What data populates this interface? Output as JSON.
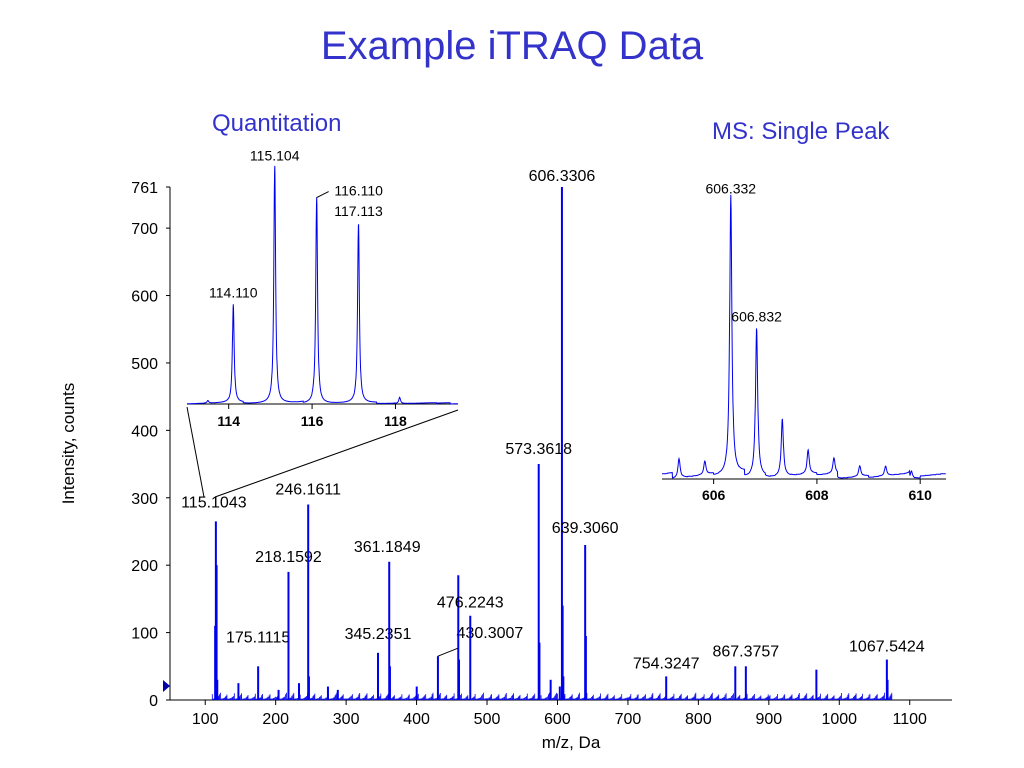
{
  "title": "Example iTRAQ Data",
  "inset_labels": {
    "left": "Quantitation",
    "right": "MS: Single Peak"
  },
  "colors": {
    "accent": "#3333cc",
    "spectrum": "#0000ee",
    "axis": "#000000"
  },
  "chart_data": [
    {
      "type": "line",
      "role": "main spectrum",
      "xlabel": "m/z, Da",
      "ylabel": "Intensity, counts",
      "xlim": [
        50,
        1160
      ],
      "ylim": [
        0,
        761
      ],
      "x_ticks": [
        100,
        200,
        300,
        400,
        500,
        600,
        700,
        800,
        900,
        1000,
        1100
      ],
      "y_ticks": [
        0,
        100,
        200,
        300,
        400,
        500,
        600,
        700,
        761
      ],
      "peaks": [
        {
          "mz": 114.1,
          "i": 110
        },
        {
          "mz": 115.1043,
          "i": 265,
          "label": "115.1043"
        },
        {
          "mz": 116.11,
          "i": 200
        },
        {
          "mz": 117.11,
          "i": 30
        },
        {
          "mz": 147.1,
          "i": 25
        },
        {
          "mz": 175.1115,
          "i": 50,
          "label": "175.1115"
        },
        {
          "mz": 204.1,
          "i": 15
        },
        {
          "mz": 218.1592,
          "i": 190,
          "label": "218.1592"
        },
        {
          "mz": 233.1,
          "i": 25
        },
        {
          "mz": 246.1611,
          "i": 290,
          "label": "246.1611"
        },
        {
          "mz": 247.2,
          "i": 35
        },
        {
          "mz": 274.2,
          "i": 20
        },
        {
          "mz": 288.2,
          "i": 15
        },
        {
          "mz": 345.2351,
          "i": 70,
          "label": "345.2351"
        },
        {
          "mz": 361.1849,
          "i": 205,
          "label": "361.1849"
        },
        {
          "mz": 362.2,
          "i": 50
        },
        {
          "mz": 400.2,
          "i": 20
        },
        {
          "mz": 430.3007,
          "i": 65,
          "label": "430.3007"
        },
        {
          "mz": 459.2,
          "i": 185
        },
        {
          "mz": 460.2,
          "i": 60
        },
        {
          "mz": 476.2243,
          "i": 125,
          "label": "476.2243"
        },
        {
          "mz": 573.3618,
          "i": 350,
          "label": "573.3618"
        },
        {
          "mz": 574.4,
          "i": 85
        },
        {
          "mz": 590.3,
          "i": 30
        },
        {
          "mz": 603.3,
          "i": 20
        },
        {
          "mz": 606.3306,
          "i": 761,
          "label": "606.3306"
        },
        {
          "mz": 607.3,
          "i": 140
        },
        {
          "mz": 608.3,
          "i": 35
        },
        {
          "mz": 639.306,
          "i": 230,
          "label": "639.3060"
        },
        {
          "mz": 640.3,
          "i": 95
        },
        {
          "mz": 754.3247,
          "i": 35,
          "label": "754.3247"
        },
        {
          "mz": 852.4,
          "i": 50
        },
        {
          "mz": 867.3757,
          "i": 50,
          "label": "867.3757"
        },
        {
          "mz": 967.5,
          "i": 45
        },
        {
          "mz": 1067.5424,
          "i": 60,
          "label": "1067.5424"
        },
        {
          "mz": 1068.5,
          "i": 30
        }
      ]
    },
    {
      "type": "line",
      "role": "quantitation inset",
      "xlim": [
        113,
        119.5
      ],
      "ylim": [
        0,
        780
      ],
      "x_ticks": [
        114,
        116,
        118
      ],
      "peaks": [
        {
          "mz": 113.5,
          "i": 8
        },
        {
          "mz": 114.11,
          "i": 315,
          "label": "114.110"
        },
        {
          "mz": 115.104,
          "i": 760,
          "label": "115.104"
        },
        {
          "mz": 116.11,
          "i": 660,
          "label": "116.110"
        },
        {
          "mz": 117.113,
          "i": 575,
          "label": "117.113"
        },
        {
          "mz": 118.1,
          "i": 20
        }
      ]
    },
    {
      "type": "line",
      "role": "single peak inset",
      "xlim": [
        605,
        610.5
      ],
      "ylim": [
        0,
        300
      ],
      "x_ticks": [
        606,
        608,
        610
      ],
      "peaks": [
        {
          "mz": 605.33,
          "i": 20
        },
        {
          "mz": 605.83,
          "i": 14
        },
        {
          "mz": 606.332,
          "i": 290,
          "label": "606.332"
        },
        {
          "mz": 606.832,
          "i": 155,
          "label": "606.832"
        },
        {
          "mz": 607.33,
          "i": 60
        },
        {
          "mz": 607.83,
          "i": 25
        },
        {
          "mz": 608.33,
          "i": 16
        },
        {
          "mz": 608.83,
          "i": 11
        },
        {
          "mz": 609.33,
          "i": 10
        },
        {
          "mz": 609.83,
          "i": 8
        }
      ]
    }
  ]
}
